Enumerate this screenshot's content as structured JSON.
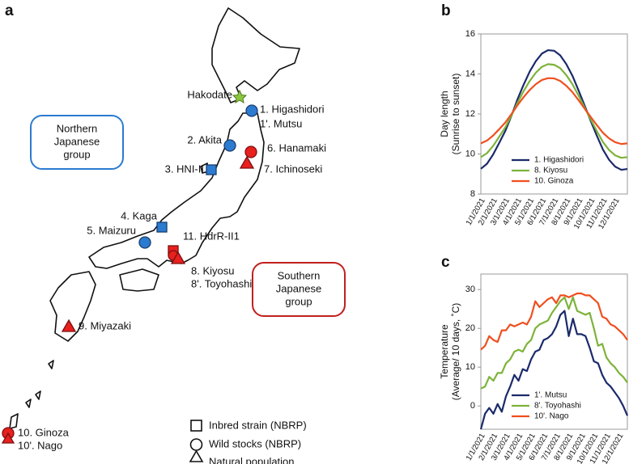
{
  "panel_labels": [
    "a",
    "b",
    "c"
  ],
  "map": {
    "sites": [
      "Hakodate",
      "1. Higashidori",
      "1'. Mutsu",
      "2. Akita",
      "6. Hanamaki",
      "7. Ichinoseki",
      "3. HNI-II",
      "4. Kaga",
      "5. Maizuru",
      "11. HdrR-II1",
      "8. Kiyosu",
      "8'. Toyohashi",
      "9. Miyazaki",
      "10. Ginoza",
      "10'. Nago"
    ],
    "groups": [
      [
        "Northern",
        "Japanese",
        "group"
      ],
      [
        "Southern",
        "Japanese",
        "group"
      ]
    ],
    "legend": [
      "Inbred strain (NBRP)",
      "Wild stocks (NBRP)",
      "Natural population"
    ]
  },
  "chart_data": [
    {
      "type": "line",
      "y_label": [
        "Day length",
        "(Sunrise to sunset)"
      ],
      "categories": [
        "1/1/2021",
        null,
        "2/1/2021",
        null,
        "3/1/2021",
        null,
        "4/1/2021",
        null,
        "5/1/2021",
        null,
        "6/1/2021",
        null,
        "7/1/2021",
        null,
        "8/1/2021",
        null,
        "9/1/2021",
        null,
        "10/1/2021",
        null,
        "11/1/2021",
        null,
        "12/1/2021",
        null,
        null
      ],
      "ylim": [
        8,
        16
      ],
      "yticks": [
        8,
        10,
        12,
        14,
        16
      ],
      "legend": "lower center",
      "series": [
        {
          "name": "1. Higashidori",
          "color": "#1b2a6b",
          "values": [
            9.26,
            9.51,
            9.97,
            10.55,
            11.15,
            11.9,
            12.73,
            13.46,
            14.12,
            14.64,
            15.02,
            15.19,
            15.16,
            14.93,
            14.49,
            13.91,
            13.18,
            12.42,
            11.65,
            10.91,
            10.22,
            9.71,
            9.37,
            9.21,
            9.25
          ]
        },
        {
          "name": "8. Kiyosu",
          "color": "#7db33a",
          "values": [
            9.84,
            10.04,
            10.4,
            10.86,
            11.33,
            11.92,
            12.56,
            13.14,
            13.65,
            14.06,
            14.36,
            14.49,
            14.46,
            14.29,
            13.94,
            13.49,
            12.92,
            12.32,
            11.72,
            11.14,
            10.6,
            10.2,
            9.93,
            9.81,
            9.84
          ]
        },
        {
          "name": "10. Ginoza",
          "color": "#ef4f1f",
          "values": [
            10.53,
            10.67,
            10.92,
            11.24,
            11.57,
            11.99,
            12.44,
            12.84,
            13.2,
            13.49,
            13.7,
            13.79,
            13.78,
            13.65,
            13.41,
            13.09,
            12.69,
            12.27,
            11.85,
            11.44,
            11.06,
            10.78,
            10.59,
            10.5,
            10.53
          ]
        }
      ]
    },
    {
      "type": "line",
      "y_label": [
        "Temperature",
        "(Average/ 10 days, ˚C)"
      ],
      "categories": [
        "1/1/2021",
        null,
        null,
        "2/1/2021",
        null,
        null,
        "3/1/2021",
        null,
        null,
        "4/1/2021",
        null,
        null,
        "5/1/2021",
        null,
        null,
        "6/1/2021",
        null,
        null,
        "7/1/2021",
        null,
        null,
        "8/1/2021",
        null,
        null,
        "9/1/2021",
        null,
        null,
        "10/1/2021",
        null,
        null,
        "11/1/2021",
        null,
        null,
        "12/1/2021",
        null,
        null
      ],
      "ylim": [
        -6,
        34
      ],
      "yticks": [
        0,
        10,
        20,
        30
      ],
      "legend": "lower center",
      "series": [
        {
          "name": "1'. Mutsu",
          "color": "#1b2a6b",
          "values": [
            -6,
            -2,
            -0.5,
            -2,
            0.5,
            -1.5,
            2.5,
            5,
            8,
            6.5,
            9.5,
            9,
            12,
            14,
            14.5,
            17,
            17.5,
            18.5,
            20.5,
            23.5,
            24.5,
            18,
            22.5,
            18.5,
            18.5,
            18,
            15,
            11.5,
            11,
            8,
            6,
            5,
            3.5,
            2,
            0,
            -2.5
          ]
        },
        {
          "name": "8'. Toyohashi",
          "color": "#7db33a",
          "values": [
            4.5,
            5,
            7.5,
            6.5,
            8.5,
            8.5,
            11,
            12,
            14,
            14.5,
            14,
            16,
            17,
            20,
            21,
            21.5,
            22,
            24,
            25.5,
            27,
            28,
            25,
            28,
            24.5,
            24,
            23.5,
            24,
            20,
            15.5,
            16,
            12.5,
            11,
            10,
            8.5,
            7.5,
            6
          ]
        },
        {
          "name": "10'. Nago",
          "color": "#ef4f1f",
          "values": [
            14.5,
            15.5,
            18,
            17,
            16.5,
            19.5,
            19.5,
            21,
            20.5,
            21,
            21.5,
            21,
            23,
            27,
            25.5,
            26.5,
            27.5,
            28,
            26.5,
            28.5,
            28.5,
            28,
            28.5,
            29,
            29,
            28.5,
            28.5,
            27.5,
            26.5,
            23,
            22.5,
            21,
            20.5,
            19.5,
            18.5,
            17
          ]
        }
      ]
    }
  ]
}
